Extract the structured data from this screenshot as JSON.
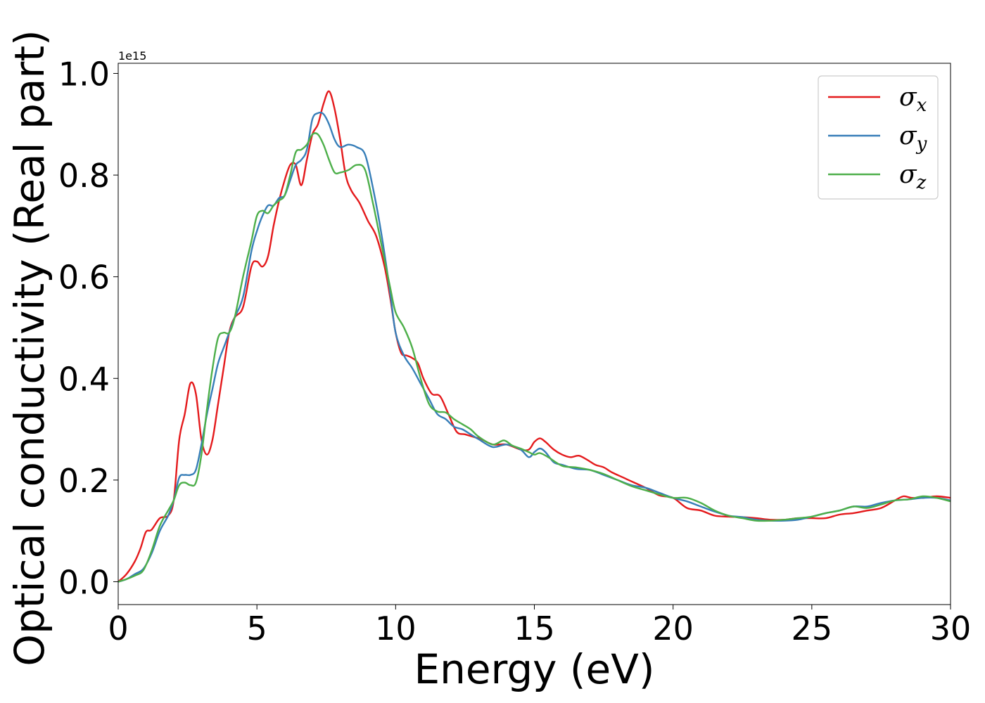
{
  "chart_data": {
    "type": "line",
    "xlabel": "Energy (eV)",
    "ylabel": "Optical conductivity (Real part)",
    "y_offset_label": "1e15",
    "xlim": [
      0,
      30
    ],
    "ylim": [
      -0.045,
      1.02
    ],
    "x_ticks": [
      0,
      5,
      10,
      15,
      20,
      25,
      30
    ],
    "x_tick_labels": [
      "0",
      "5",
      "10",
      "15",
      "20",
      "25",
      "30"
    ],
    "y_ticks": [
      0.0,
      0.2,
      0.4,
      0.6,
      0.8,
      1.0
    ],
    "y_tick_labels": [
      "0.0",
      "0.2",
      "0.4",
      "0.6",
      "0.8",
      "1.0"
    ],
    "grid": false,
    "legend_position": "top-right",
    "series": [
      {
        "name": "σx",
        "legend_symbol": "σ",
        "legend_subscript": "x",
        "color": "#e41a1c",
        "x": [
          0,
          0.3,
          0.6,
          0.8,
          1.0,
          1.2,
          1.5,
          1.8,
          2.0,
          2.2,
          2.4,
          2.6,
          2.8,
          3.0,
          3.2,
          3.4,
          3.6,
          3.8,
          4.0,
          4.2,
          4.5,
          4.8,
          5.0,
          5.2,
          5.4,
          5.6,
          5.8,
          6.0,
          6.2,
          6.4,
          6.6,
          6.8,
          7.0,
          7.2,
          7.4,
          7.6,
          7.8,
          8.0,
          8.2,
          8.4,
          8.7,
          9.0,
          9.3,
          9.6,
          9.8,
          10.0,
          10.2,
          10.4,
          10.6,
          10.8,
          11.0,
          11.3,
          11.6,
          11.9,
          12.2,
          12.5,
          12.8,
          13.1,
          13.5,
          14.0,
          14.5,
          14.8,
          15.0,
          15.2,
          15.4,
          15.7,
          16.0,
          16.3,
          16.6,
          16.9,
          17.2,
          17.5,
          17.8,
          18.2,
          18.6,
          19.0,
          19.5,
          20.0,
          20.5,
          21.0,
          21.5,
          22.0,
          22.5,
          23.0,
          23.5,
          24.0,
          24.5,
          25.0,
          25.5,
          26.0,
          26.5,
          27.0,
          27.5,
          28.0,
          28.3,
          28.6,
          29.0,
          29.5,
          30.0
        ],
        "values": [
          0.0,
          0.015,
          0.04,
          0.065,
          0.098,
          0.102,
          0.125,
          0.13,
          0.16,
          0.28,
          0.33,
          0.39,
          0.37,
          0.28,
          0.25,
          0.28,
          0.35,
          0.42,
          0.49,
          0.52,
          0.54,
          0.62,
          0.63,
          0.62,
          0.64,
          0.7,
          0.75,
          0.79,
          0.82,
          0.82,
          0.78,
          0.83,
          0.88,
          0.9,
          0.94,
          0.965,
          0.93,
          0.87,
          0.8,
          0.77,
          0.745,
          0.71,
          0.68,
          0.62,
          0.56,
          0.49,
          0.45,
          0.445,
          0.44,
          0.43,
          0.4,
          0.37,
          0.365,
          0.33,
          0.295,
          0.29,
          0.285,
          0.28,
          0.27,
          0.27,
          0.26,
          0.26,
          0.275,
          0.282,
          0.275,
          0.26,
          0.25,
          0.245,
          0.248,
          0.24,
          0.23,
          0.225,
          0.215,
          0.205,
          0.195,
          0.185,
          0.17,
          0.165,
          0.145,
          0.14,
          0.13,
          0.128,
          0.127,
          0.125,
          0.122,
          0.122,
          0.125,
          0.125,
          0.125,
          0.132,
          0.135,
          0.14,
          0.145,
          0.16,
          0.168,
          0.165,
          0.165,
          0.168,
          0.165
        ]
      },
      {
        "name": "σy",
        "legend_symbol": "σ",
        "legend_subscript": "y",
        "color": "#377eb8",
        "x": [
          0,
          0.3,
          0.6,
          0.9,
          1.2,
          1.5,
          1.8,
          2.0,
          2.2,
          2.4,
          2.6,
          2.8,
          3.0,
          3.2,
          3.4,
          3.6,
          3.8,
          4.0,
          4.2,
          4.5,
          4.8,
          5.0,
          5.2,
          5.4,
          5.6,
          5.8,
          6.0,
          6.2,
          6.4,
          6.6,
          6.8,
          7.0,
          7.2,
          7.4,
          7.6,
          7.8,
          8.0,
          8.3,
          8.6,
          8.9,
          9.2,
          9.5,
          9.8,
          10.0,
          10.3,
          10.6,
          10.9,
          11.2,
          11.5,
          11.8,
          12.1,
          12.4,
          12.7,
          13.0,
          13.5,
          14.0,
          14.5,
          14.8,
          15.0,
          15.2,
          15.4,
          15.7,
          16.0,
          16.5,
          17.0,
          17.5,
          18.0,
          18.5,
          19.0,
          19.5,
          20.0,
          20.5,
          21.0,
          21.5,
          22.0,
          22.5,
          23.0,
          23.5,
          24.0,
          24.5,
          25.0,
          25.5,
          26.0,
          26.5,
          27.0,
          27.5,
          28.0,
          28.5,
          29.0,
          29.5,
          30.0
        ],
        "values": [
          0.0,
          0.005,
          0.015,
          0.025,
          0.055,
          0.1,
          0.13,
          0.16,
          0.205,
          0.21,
          0.21,
          0.22,
          0.27,
          0.33,
          0.38,
          0.43,
          0.46,
          0.49,
          0.52,
          0.56,
          0.65,
          0.69,
          0.72,
          0.74,
          0.74,
          0.755,
          0.76,
          0.79,
          0.82,
          0.83,
          0.85,
          0.91,
          0.922,
          0.92,
          0.9,
          0.87,
          0.855,
          0.86,
          0.855,
          0.84,
          0.77,
          0.68,
          0.57,
          0.49,
          0.445,
          0.42,
          0.39,
          0.36,
          0.33,
          0.32,
          0.305,
          0.3,
          0.29,
          0.28,
          0.265,
          0.27,
          0.26,
          0.245,
          0.255,
          0.262,
          0.255,
          0.235,
          0.23,
          0.222,
          0.22,
          0.21,
          0.2,
          0.19,
          0.185,
          0.175,
          0.165,
          0.158,
          0.148,
          0.138,
          0.13,
          0.127,
          0.122,
          0.12,
          0.12,
          0.122,
          0.128,
          0.135,
          0.14,
          0.148,
          0.148,
          0.155,
          0.16,
          0.162,
          0.165,
          0.165,
          0.16
        ]
      },
      {
        "name": "σz",
        "legend_symbol": "σ",
        "legend_subscript": "z",
        "color": "#4daf4a",
        "x": [
          0,
          0.3,
          0.6,
          0.9,
          1.2,
          1.5,
          1.8,
          2.0,
          2.2,
          2.4,
          2.6,
          2.8,
          3.0,
          3.2,
          3.4,
          3.6,
          3.8,
          4.0,
          4.2,
          4.5,
          4.8,
          5.0,
          5.2,
          5.4,
          5.6,
          5.8,
          6.0,
          6.2,
          6.4,
          6.6,
          6.8,
          7.0,
          7.2,
          7.4,
          7.6,
          7.8,
          8.0,
          8.3,
          8.6,
          8.9,
          9.2,
          9.5,
          9.8,
          10.0,
          10.3,
          10.6,
          10.9,
          11.2,
          11.5,
          11.8,
          12.1,
          12.4,
          12.7,
          13.0,
          13.5,
          13.9,
          14.2,
          14.5,
          14.8,
          15.0,
          15.2,
          15.5,
          16.0,
          16.5,
          17.0,
          17.5,
          18.0,
          18.5,
          19.0,
          19.5,
          20.0,
          20.5,
          21.0,
          21.5,
          22.0,
          22.5,
          23.0,
          23.5,
          24.0,
          24.5,
          25.0,
          25.5,
          26.0,
          26.5,
          27.0,
          27.5,
          28.0,
          28.5,
          29.0,
          29.5,
          30.0
        ],
        "values": [
          0.0,
          0.005,
          0.012,
          0.022,
          0.06,
          0.11,
          0.14,
          0.16,
          0.19,
          0.195,
          0.19,
          0.195,
          0.25,
          0.34,
          0.42,
          0.48,
          0.49,
          0.49,
          0.52,
          0.6,
          0.67,
          0.72,
          0.73,
          0.725,
          0.74,
          0.75,
          0.76,
          0.8,
          0.845,
          0.85,
          0.86,
          0.88,
          0.88,
          0.86,
          0.83,
          0.805,
          0.805,
          0.81,
          0.82,
          0.81,
          0.74,
          0.66,
          0.58,
          0.53,
          0.5,
          0.46,
          0.4,
          0.35,
          0.335,
          0.333,
          0.32,
          0.31,
          0.3,
          0.285,
          0.27,
          0.278,
          0.268,
          0.262,
          0.255,
          0.25,
          0.253,
          0.245,
          0.228,
          0.225,
          0.22,
          0.212,
          0.2,
          0.188,
          0.18,
          0.172,
          0.165,
          0.165,
          0.155,
          0.14,
          0.13,
          0.125,
          0.12,
          0.12,
          0.122,
          0.125,
          0.128,
          0.135,
          0.14,
          0.148,
          0.145,
          0.152,
          0.16,
          0.162,
          0.168,
          0.165,
          0.158
        ]
      }
    ]
  }
}
